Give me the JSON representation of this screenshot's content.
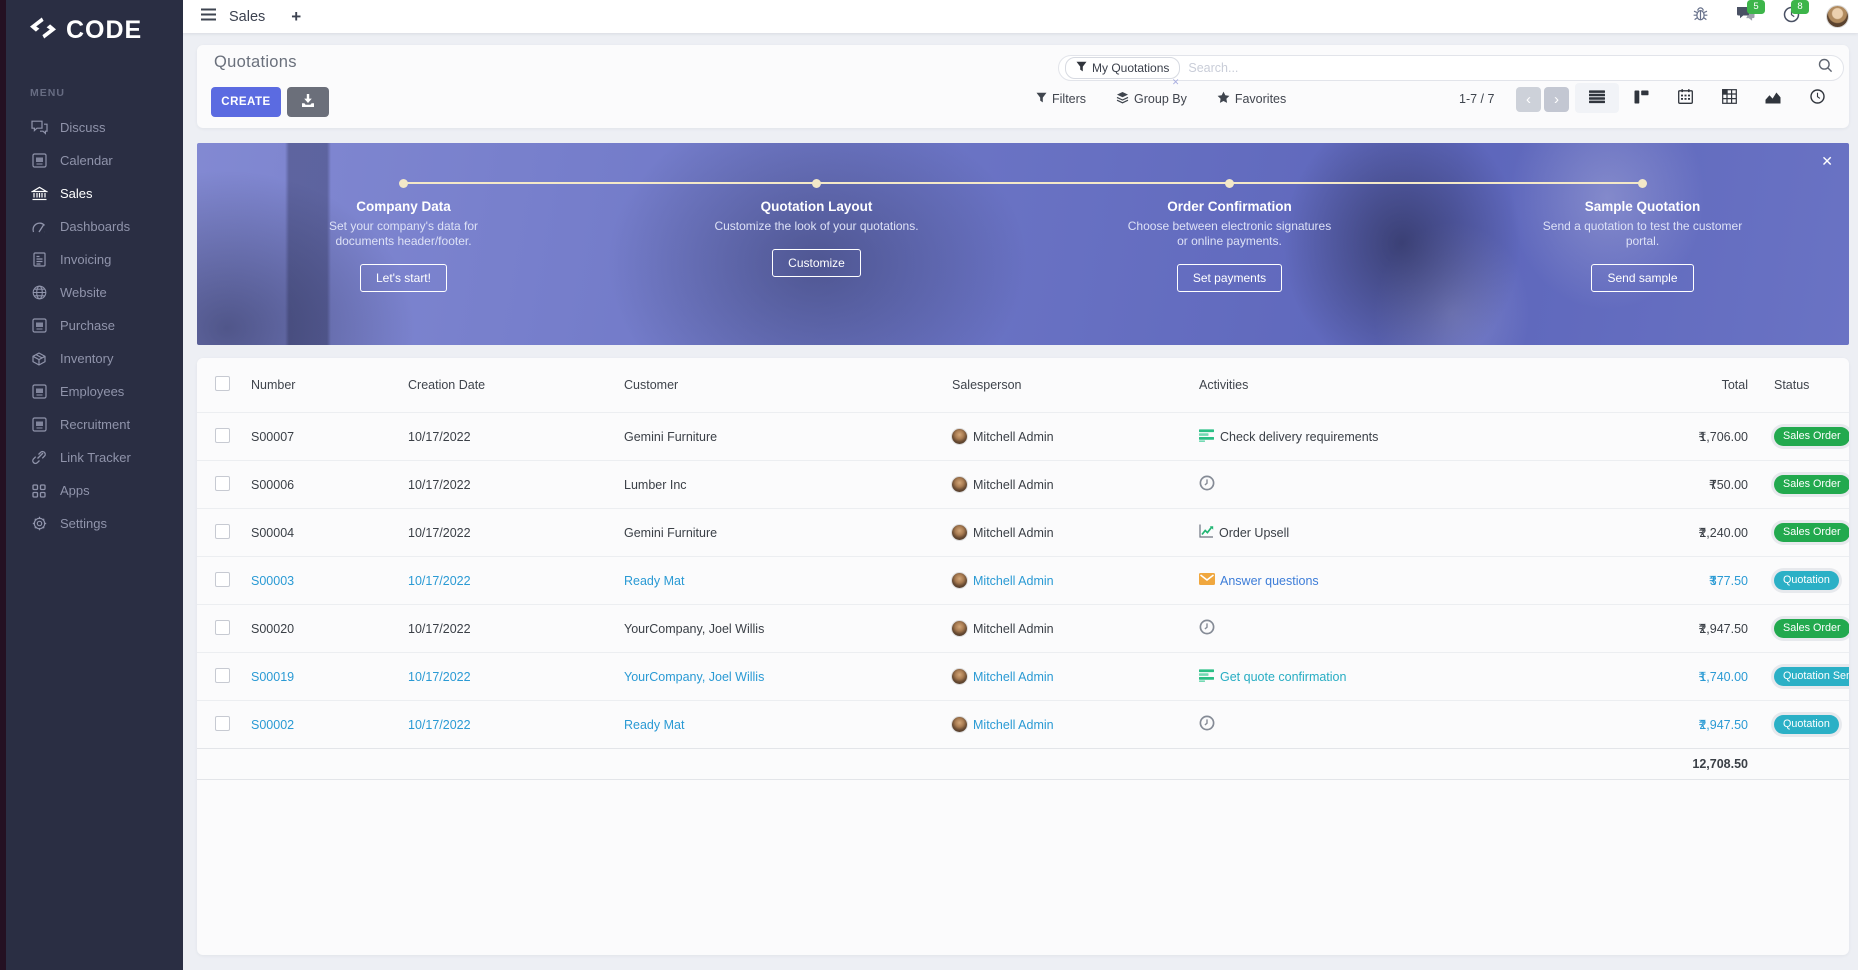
{
  "brand": {
    "logo_text": "CODE",
    "logo_icon": "logo-icon"
  },
  "topbar": {
    "app_tab_label": "Sales",
    "new_tab_label": "+",
    "message_badge": "5",
    "activity_badge": "8"
  },
  "sidebar": {
    "menu_label": "MENU",
    "items": [
      {
        "label": "Discuss",
        "icon": "discuss-icon",
        "active": false
      },
      {
        "label": "Calendar",
        "icon": "window-icon",
        "active": false
      },
      {
        "label": "Sales",
        "icon": "sales-icon",
        "active": true
      },
      {
        "label": "Dashboards",
        "icon": "dashboards-icon",
        "active": false
      },
      {
        "label": "Invoicing",
        "icon": "invoicing-icon",
        "active": false
      },
      {
        "label": "Website",
        "icon": "website-icon",
        "active": false
      },
      {
        "label": "Purchase",
        "icon": "window-icon",
        "active": false
      },
      {
        "label": "Inventory",
        "icon": "inventory-icon",
        "active": false
      },
      {
        "label": "Employees",
        "icon": "window-icon",
        "active": false
      },
      {
        "label": "Recruitment",
        "icon": "window-icon",
        "active": false
      },
      {
        "label": "Link Tracker",
        "icon": "link-icon",
        "active": false
      },
      {
        "label": "Apps",
        "icon": "apps-icon",
        "active": false
      },
      {
        "label": "Settings",
        "icon": "settings-icon",
        "active": false
      }
    ]
  },
  "control_panel": {
    "title": "Quotations",
    "create_label": "CREATE",
    "search": {
      "facet_label": "My Quotations",
      "facet_close": "✕",
      "placeholder": "Search..."
    },
    "filters_label": "Filters",
    "groupby_label": "Group By",
    "favorites_label": "Favorites",
    "pager": {
      "display": "1-7 / 7",
      "prev": "‹",
      "next": "›"
    },
    "views": [
      {
        "name": "list-view",
        "icon": "view-list-icon",
        "active": true
      },
      {
        "name": "kanban-view",
        "icon": "view-kanban-icon",
        "active": false
      },
      {
        "name": "calendar-view",
        "icon": "view-calendar-icon",
        "active": false
      },
      {
        "name": "pivot-view",
        "icon": "view-pivot-icon",
        "active": false
      },
      {
        "name": "graph-view",
        "icon": "view-graph-icon",
        "active": false
      },
      {
        "name": "activity-view",
        "icon": "view-activity-icon",
        "active": false
      }
    ]
  },
  "banner": {
    "close_label": "✕",
    "steps": [
      {
        "title": "Company Data",
        "desc": "Set your company's data for documents header/footer.",
        "button": "Let's start!"
      },
      {
        "title": "Quotation Layout",
        "desc": "Customize the look of your quotations.",
        "button": "Customize"
      },
      {
        "title": "Order Confirmation",
        "desc": "Choose between electronic signatures or online payments.",
        "button": "Set payments"
      },
      {
        "title": "Sample Quotation",
        "desc": "Send a quotation to test the customer portal.",
        "button": "Send sample"
      }
    ]
  },
  "table": {
    "columns": [
      "Number",
      "Creation Date",
      "Customer",
      "Salesperson",
      "Activities",
      "Total",
      "Status"
    ],
    "currency_symbol": "₹",
    "rows": [
      {
        "number": "S00007",
        "creation_date": "10/17/2022",
        "customer": "Gemini Furniture",
        "salesperson": "Mitchell Admin",
        "activity": {
          "icon": "activity-list-icon",
          "label": "Check delivery requirements",
          "color": "dark"
        },
        "total": "1,706.00",
        "status": {
          "label": "Sales Order",
          "color": "green"
        },
        "highlighted": false
      },
      {
        "number": "S00006",
        "creation_date": "10/17/2022",
        "customer": "Lumber Inc",
        "salesperson": "Mitchell Admin",
        "activity": {
          "icon": "activity-clock-icon",
          "label": "",
          "color": "dark"
        },
        "total": "750.00",
        "status": {
          "label": "Sales Order",
          "color": "green"
        },
        "highlighted": false
      },
      {
        "number": "S00004",
        "creation_date": "10/17/2022",
        "customer": "Gemini Furniture",
        "salesperson": "Mitchell Admin",
        "activity": {
          "icon": "activity-chart-icon",
          "label": "Order Upsell",
          "color": "dark"
        },
        "total": "2,240.00",
        "status": {
          "label": "Sales Order",
          "color": "green"
        },
        "highlighted": false
      },
      {
        "number": "S00003",
        "creation_date": "10/17/2022",
        "customer": "Ready Mat",
        "salesperson": "Mitchell Admin",
        "activity": {
          "icon": "activity-mail-icon",
          "label": "Answer questions",
          "color": "blue"
        },
        "total": "377.50",
        "status": {
          "label": "Quotation",
          "color": "teal"
        },
        "highlighted": true
      },
      {
        "number": "S00020",
        "creation_date": "10/17/2022",
        "customer": "YourCompany, Joel Willis",
        "salesperson": "Mitchell Admin",
        "activity": {
          "icon": "activity-clock-icon",
          "label": "",
          "color": "dark"
        },
        "total": "2,947.50",
        "status": {
          "label": "Sales Order",
          "color": "green"
        },
        "highlighted": false
      },
      {
        "number": "S00019",
        "creation_date": "10/17/2022",
        "customer": "YourCompany, Joel Willis",
        "salesperson": "Mitchell Admin",
        "activity": {
          "icon": "activity-list-icon",
          "label": "Get quote confirmation",
          "color": "teal"
        },
        "total": "1,740.00",
        "status": {
          "label": "Quotation Sent",
          "color": "teal"
        },
        "highlighted": true
      },
      {
        "number": "S00002",
        "creation_date": "10/17/2022",
        "customer": "Ready Mat",
        "salesperson": "Mitchell Admin",
        "activity": {
          "icon": "activity-clock-icon",
          "label": "",
          "color": "dark"
        },
        "total": "2,947.50",
        "status": {
          "label": "Quotation",
          "color": "teal"
        },
        "highlighted": true
      }
    ],
    "footer_total": "12,708.50"
  },
  "colors": {
    "accent": "#5b6be1",
    "sidebar_bg": "#2a2e43",
    "badge_green": "#22a94e",
    "badge_teal": "#2bb0c6",
    "link_blue": "#2a9ad4",
    "activity_blue": "#3d7dd8",
    "activity_teal": "#27adc3",
    "notification_green": "#3db54a",
    "banner_overlay": "#6a73c4"
  }
}
